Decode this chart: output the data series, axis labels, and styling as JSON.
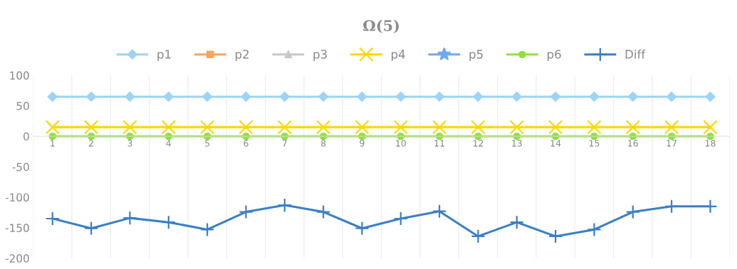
{
  "chart_data": {
    "type": "line",
    "title": "Ω(5)",
    "categories": [
      "1",
      "2",
      "3",
      "4",
      "5",
      "6",
      "7",
      "8",
      "9",
      "10",
      "11",
      "12",
      "13",
      "14",
      "15",
      "16",
      "17",
      "18"
    ],
    "series": [
      {
        "name": "p1",
        "color": "#9dd3f7",
        "marker": "diamond",
        "values": [
          65,
          65,
          65,
          65,
          65,
          65,
          65,
          65,
          65,
          65,
          65,
          65,
          65,
          65,
          65,
          65,
          65,
          65
        ]
      },
      {
        "name": "p2",
        "color": "#f4a460",
        "marker": "square",
        "values": [
          null,
          null,
          null,
          null,
          null,
          null,
          null,
          null,
          null,
          null,
          null,
          null,
          null,
          null,
          null,
          null,
          null,
          null
        ]
      },
      {
        "name": "p3",
        "color": "#c8c8c8",
        "marker": "triangle",
        "values": [
          null,
          null,
          null,
          null,
          null,
          null,
          null,
          null,
          null,
          null,
          null,
          null,
          null,
          null,
          null,
          null,
          null,
          null
        ]
      },
      {
        "name": "p4",
        "color": "#ffd700",
        "marker": "cross",
        "values": [
          15,
          15,
          15,
          15,
          15,
          15,
          15,
          15,
          15,
          15,
          15,
          15,
          15,
          15,
          15,
          15,
          15,
          15
        ]
      },
      {
        "name": "p5",
        "color": "#6fa8f0",
        "marker": "star",
        "values": [
          null,
          null,
          null,
          null,
          null,
          null,
          null,
          null,
          null,
          null,
          null,
          null,
          null,
          null,
          null,
          null,
          null,
          null
        ]
      },
      {
        "name": "p6",
        "color": "#90e040",
        "marker": "circle",
        "values": [
          0,
          0,
          0,
          0,
          0,
          0,
          0,
          0,
          0,
          0,
          0,
          0,
          0,
          0,
          0,
          0,
          0,
          0
        ]
      },
      {
        "name": "Diff",
        "color": "#3a7fc8",
        "marker": "plus",
        "values": [
          -135,
          -151,
          -134,
          -141,
          -153,
          -124,
          -113,
          -124,
          -151,
          -135,
          -123,
          -164,
          -141,
          -164,
          -153,
          -124,
          -115,
          -115
        ]
      }
    ],
    "ylim": [
      -200,
      100
    ],
    "yticks": [
      -200,
      -150,
      -100,
      -50,
      0,
      50,
      100
    ],
    "grid": "x",
    "legend": "top"
  }
}
